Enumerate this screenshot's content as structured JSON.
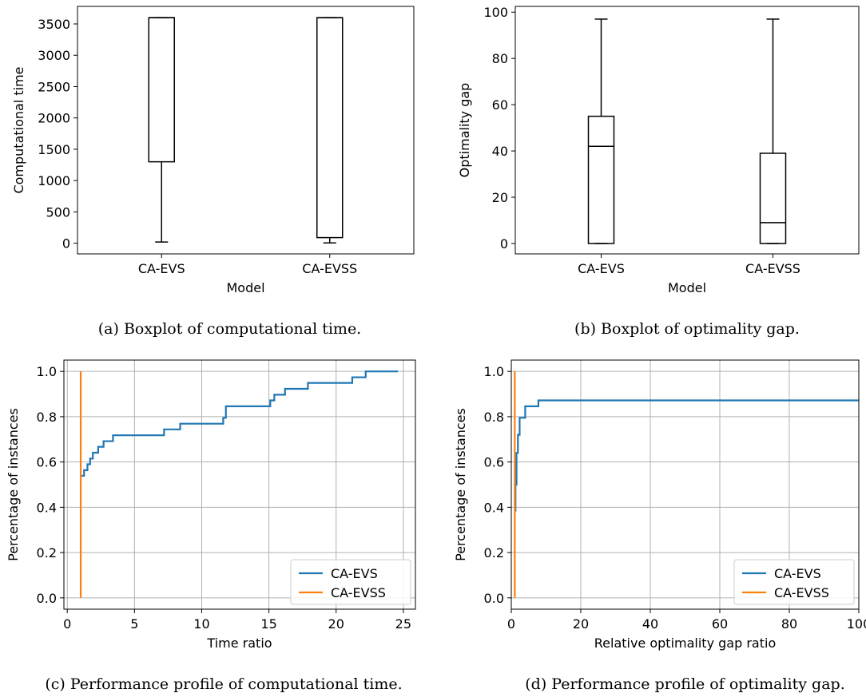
{
  "chart_data": [
    {
      "type": "boxplot",
      "caption": "(a) Boxplot of computational time.",
      "xlabel": "Model",
      "ylabel": "Computational time",
      "categories": [
        "CA-EVS",
        "CA-EVSS"
      ],
      "ylim": [
        -170,
        3780
      ],
      "yticks": [
        0,
        500,
        1000,
        1500,
        2000,
        2500,
        3000,
        3500
      ],
      "grid": false,
      "boxes": [
        {
          "label": "CA-EVS",
          "whislo": 20,
          "q1": 1300,
          "med": 3600,
          "q3": 3600,
          "whishi": 3600
        },
        {
          "label": "CA-EVSS",
          "whislo": 5,
          "q1": 90,
          "med": 3600,
          "q3": 3600,
          "whishi": 3600
        }
      ]
    },
    {
      "type": "boxplot",
      "caption": "(b) Boxplot of optimality gap.",
      "xlabel": "Model",
      "ylabel": "Optimality gap",
      "categories": [
        "CA-EVS",
        "CA-EVSS"
      ],
      "ylim": [
        -4.5,
        102.5
      ],
      "yticks": [
        0,
        20,
        40,
        60,
        80,
        100
      ],
      "grid": false,
      "boxes": [
        {
          "label": "CA-EVS",
          "whislo": 0,
          "q1": 0,
          "med": 42,
          "q3": 55,
          "whishi": 97
        },
        {
          "label": "CA-EVSS",
          "whislo": 0,
          "q1": 0,
          "med": 9,
          "q3": 39,
          "whishi": 97
        }
      ]
    },
    {
      "type": "line",
      "caption": "(c) Performance profile of computational time.",
      "xlabel": "Time ratio",
      "ylabel": "Percentage of instances",
      "xlim": [
        -0.25,
        25.9
      ],
      "ylim": [
        -0.05,
        1.05
      ],
      "xticks": [
        0,
        5,
        10,
        15,
        20,
        25
      ],
      "yticks": [
        0.0,
        0.2,
        0.4,
        0.6,
        0.8,
        1.0
      ],
      "grid": true,
      "legend": "bottom-right",
      "series": [
        {
          "name": "CA-EVS",
          "color": "#1f77b4",
          "step": true,
          "x": [
            1.0,
            1.25,
            1.5,
            1.7,
            1.9,
            2.3,
            2.7,
            3.4,
            7.2,
            8.4,
            11.6,
            11.8,
            15.1,
            15.4,
            16.2,
            17.9,
            21.2,
            22.2,
            24.6
          ],
          "y": [
            0.539,
            0.564,
            0.59,
            0.615,
            0.641,
            0.667,
            0.692,
            0.718,
            0.744,
            0.769,
            0.795,
            0.846,
            0.872,
            0.897,
            0.923,
            0.949,
            0.974,
            1.0,
            1.0
          ]
        },
        {
          "name": "CA-EVSS",
          "color": "#ff7f0e",
          "step": false,
          "x": [
            1.0,
            1.0
          ],
          "y": [
            0.0,
            1.0
          ]
        }
      ]
    },
    {
      "type": "line",
      "caption": "(d) Performance profile of optimality gap.",
      "xlabel": "Relative optimality gap ratio",
      "ylabel": "Percentage of instances",
      "xlim": [
        0,
        100
      ],
      "ylim": [
        -0.05,
        1.05
      ],
      "xticks": [
        0,
        20,
        40,
        60,
        80,
        100
      ],
      "yticks": [
        0.0,
        0.2,
        0.4,
        0.6,
        0.8,
        1.0
      ],
      "grid": true,
      "legend": "bottom-right",
      "series": [
        {
          "name": "CA-EVS",
          "color": "#1f77b4",
          "step": true,
          "x": [
            1.0,
            1.2,
            1.5,
            1.9,
            2.4,
            4.0,
            7.8,
            100
          ],
          "y": [
            0.385,
            0.5,
            0.64,
            0.72,
            0.795,
            0.846,
            0.872,
            0.872
          ]
        },
        {
          "name": "CA-EVSS",
          "color": "#ff7f0e",
          "step": false,
          "x": [
            1.0,
            1.0
          ],
          "y": [
            0.0,
            1.0
          ]
        }
      ]
    }
  ]
}
